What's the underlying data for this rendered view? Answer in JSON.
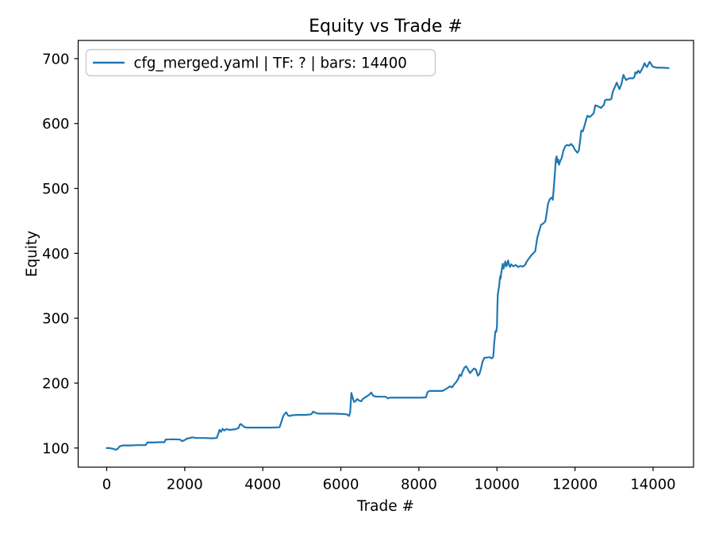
{
  "figure": {
    "title": "Equity vs Trade #",
    "xlabel": "Trade #",
    "ylabel": "Equity",
    "legend_label": "cfg_merged.yaml | TF: ? | bars: 14400",
    "line_color": "#1f77b4"
  },
  "chart_data": {
    "type": "line",
    "title": "Equity vs Trade #",
    "xlabel": "Trade #",
    "ylabel": "Equity",
    "grid": false,
    "legend_position": "upper left",
    "legend_entries": [
      "cfg_merged.yaml | TF: ? | bars: 14400"
    ],
    "line_color": "#1f77b4",
    "xlim": [
      -731,
      15037
    ],
    "ylim": [
      70.5,
      728
    ],
    "xticks": [
      0,
      2000,
      4000,
      6000,
      8000,
      10000,
      12000,
      14000
    ],
    "yticks": [
      100,
      200,
      300,
      400,
      500,
      600,
      700
    ],
    "series": [
      {
        "name": "cfg_merged.yaml | TF: ? | bars: 14400",
        "points": [
          [
            0,
            100
          ],
          [
            70,
            100
          ],
          [
            150,
            99
          ],
          [
            230,
            97.5
          ],
          [
            280,
            98.5
          ],
          [
            320,
            102
          ],
          [
            400,
            104
          ],
          [
            600,
            104
          ],
          [
            800,
            104.5
          ],
          [
            1000,
            104.5
          ],
          [
            1040,
            108.5
          ],
          [
            1200,
            108.5
          ],
          [
            1350,
            109
          ],
          [
            1480,
            109
          ],
          [
            1510,
            113
          ],
          [
            1700,
            113.5
          ],
          [
            1880,
            113
          ],
          [
            1930,
            110.5
          ],
          [
            1990,
            112
          ],
          [
            2060,
            114.5
          ],
          [
            2200,
            116.5
          ],
          [
            2300,
            115.5
          ],
          [
            2500,
            115.5
          ],
          [
            2700,
            115
          ],
          [
            2820,
            115.5
          ],
          [
            2860,
            122
          ],
          [
            2890,
            128
          ],
          [
            2930,
            125
          ],
          [
            2970,
            129.5
          ],
          [
            3010,
            127
          ],
          [
            3060,
            129
          ],
          [
            3150,
            128
          ],
          [
            3300,
            129
          ],
          [
            3380,
            131
          ],
          [
            3410,
            136
          ],
          [
            3440,
            137
          ],
          [
            3490,
            134
          ],
          [
            3540,
            132
          ],
          [
            3600,
            131.5
          ],
          [
            3900,
            131.5
          ],
          [
            4200,
            131.5
          ],
          [
            4430,
            132
          ],
          [
            4480,
            141
          ],
          [
            4520,
            149
          ],
          [
            4560,
            152.5
          ],
          [
            4600,
            155
          ],
          [
            4650,
            150
          ],
          [
            4690,
            149.5
          ],
          [
            4760,
            150.5
          ],
          [
            4900,
            151
          ],
          [
            5100,
            151
          ],
          [
            5240,
            152
          ],
          [
            5290,
            156
          ],
          [
            5340,
            154.5
          ],
          [
            5420,
            153
          ],
          [
            5600,
            153
          ],
          [
            5800,
            153
          ],
          [
            6000,
            152.5
          ],
          [
            6150,
            152
          ],
          [
            6210,
            149.5
          ],
          [
            6240,
            155
          ],
          [
            6270,
            185
          ],
          [
            6300,
            178
          ],
          [
            6340,
            171
          ],
          [
            6380,
            172.5
          ],
          [
            6420,
            175.5
          ],
          [
            6470,
            173
          ],
          [
            6520,
            172
          ],
          [
            6570,
            176
          ],
          [
            6650,
            179
          ],
          [
            6720,
            182
          ],
          [
            6780,
            185.5
          ],
          [
            6820,
            181
          ],
          [
            6870,
            179.5
          ],
          [
            6950,
            179
          ],
          [
            7050,
            179
          ],
          [
            7150,
            179
          ],
          [
            7200,
            176.5
          ],
          [
            7250,
            177.5
          ],
          [
            7500,
            177.5
          ],
          [
            7800,
            177.5
          ],
          [
            8050,
            177.5
          ],
          [
            8180,
            178
          ],
          [
            8220,
            186
          ],
          [
            8270,
            188
          ],
          [
            8400,
            188
          ],
          [
            8600,
            188
          ],
          [
            8650,
            189.5
          ],
          [
            8720,
            192
          ],
          [
            8800,
            195
          ],
          [
            8850,
            193.5
          ],
          [
            8900,
            198
          ],
          [
            8960,
            202
          ],
          [
            9010,
            207
          ],
          [
            9040,
            213
          ],
          [
            9080,
            211
          ],
          [
            9120,
            218
          ],
          [
            9170,
            224
          ],
          [
            9210,
            226
          ],
          [
            9260,
            221
          ],
          [
            9310,
            215.5
          ],
          [
            9360,
            219
          ],
          [
            9410,
            222.5
          ],
          [
            9460,
            221
          ],
          [
            9510,
            211.5
          ],
          [
            9550,
            214
          ],
          [
            9590,
            222
          ],
          [
            9630,
            233
          ],
          [
            9680,
            239
          ],
          [
            9760,
            239.5
          ],
          [
            9820,
            240
          ],
          [
            9860,
            238
          ],
          [
            9900,
            240
          ],
          [
            9915,
            248
          ],
          [
            9930,
            262
          ],
          [
            9945,
            271
          ],
          [
            9960,
            280
          ],
          [
            9985,
            279.5
          ],
          [
            10000,
            289
          ],
          [
            10010,
            318
          ],
          [
            10020,
            336
          ],
          [
            10035,
            342
          ],
          [
            10055,
            349
          ],
          [
            10070,
            359
          ],
          [
            10085,
            365
          ],
          [
            10095,
            361
          ],
          [
            10110,
            370
          ],
          [
            10130,
            377
          ],
          [
            10150,
            384
          ],
          [
            10170,
            376.5
          ],
          [
            10195,
            382
          ],
          [
            10215,
            387.5
          ],
          [
            10240,
            380
          ],
          [
            10265,
            383.5
          ],
          [
            10285,
            389
          ],
          [
            10310,
            382.5
          ],
          [
            10335,
            379
          ],
          [
            10365,
            383
          ],
          [
            10420,
            380
          ],
          [
            10480,
            382
          ],
          [
            10540,
            379
          ],
          [
            10600,
            380.5
          ],
          [
            10660,
            379.5
          ],
          [
            10720,
            382
          ],
          [
            10760,
            387
          ],
          [
            10820,
            392
          ],
          [
            10880,
            397
          ],
          [
            10930,
            400
          ],
          [
            10980,
            403
          ],
          [
            11030,
            423
          ],
          [
            11080,
            434
          ],
          [
            11130,
            444
          ],
          [
            11190,
            446
          ],
          [
            11240,
            449.5
          ],
          [
            11280,
            464
          ],
          [
            11310,
            477
          ],
          [
            11360,
            484
          ],
          [
            11410,
            486
          ],
          [
            11430,
            482.5
          ],
          [
            11460,
            504
          ],
          [
            11490,
            529
          ],
          [
            11510,
            545
          ],
          [
            11530,
            549.5
          ],
          [
            11550,
            540
          ],
          [
            11570,
            544.5
          ],
          [
            11590,
            536.5
          ],
          [
            11620,
            542
          ],
          [
            11660,
            547
          ],
          [
            11700,
            558
          ],
          [
            11750,
            565
          ],
          [
            11800,
            567
          ],
          [
            11850,
            566
          ],
          [
            11900,
            568.5
          ],
          [
            11950,
            565
          ],
          [
            12000,
            559.5
          ],
          [
            12060,
            555
          ],
          [
            12100,
            559
          ],
          [
            12130,
            573
          ],
          [
            12160,
            589
          ],
          [
            12200,
            588
          ],
          [
            12250,
            598
          ],
          [
            12290,
            607
          ],
          [
            12320,
            612
          ],
          [
            12380,
            610
          ],
          [
            12440,
            613.5
          ],
          [
            12480,
            616
          ],
          [
            12520,
            628
          ],
          [
            12570,
            627
          ],
          [
            12620,
            625.5
          ],
          [
            12670,
            624
          ],
          [
            12710,
            627
          ],
          [
            12740,
            628.5
          ],
          [
            12770,
            636
          ],
          [
            12820,
            637
          ],
          [
            12880,
            636.5
          ],
          [
            12930,
            638
          ],
          [
            12970,
            649
          ],
          [
            13010,
            654.5
          ],
          [
            13040,
            659
          ],
          [
            13070,
            663
          ],
          [
            13110,
            657
          ],
          [
            13140,
            653
          ],
          [
            13190,
            661
          ],
          [
            13240,
            675
          ],
          [
            13280,
            670
          ],
          [
            13310,
            667
          ],
          [
            13360,
            669
          ],
          [
            13420,
            670
          ],
          [
            13480,
            669.5
          ],
          [
            13520,
            671.5
          ],
          [
            13545,
            679
          ],
          [
            13580,
            677
          ],
          [
            13620,
            681.5
          ],
          [
            13660,
            678
          ],
          [
            13710,
            683
          ],
          [
            13745,
            687.5
          ],
          [
            13780,
            693
          ],
          [
            13815,
            689
          ],
          [
            13845,
            687
          ],
          [
            13885,
            692
          ],
          [
            13915,
            695
          ],
          [
            13955,
            691
          ],
          [
            13985,
            688
          ],
          [
            14020,
            687
          ],
          [
            14120,
            686
          ],
          [
            14250,
            686
          ],
          [
            14400,
            685.5
          ]
        ]
      }
    ]
  }
}
